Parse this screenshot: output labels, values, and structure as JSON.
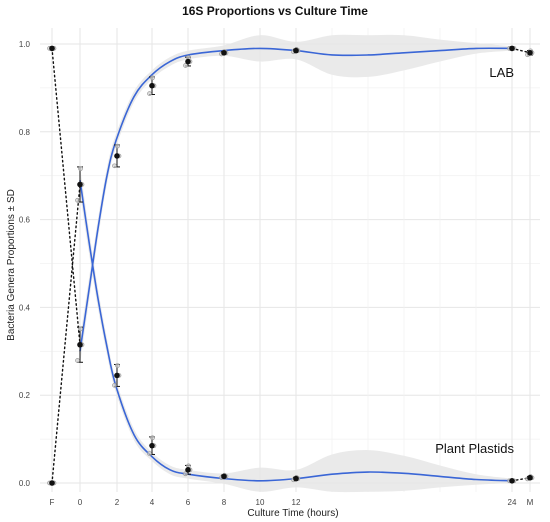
{
  "chart_data": {
    "type": "line",
    "title": "16S Proportions vs Culture Time",
    "xlabel": "Culture Time (hours)",
    "ylabel": "Bacteria Genera Proportions ± SD",
    "ylim": [
      0,
      1
    ],
    "y_ticks": [
      0.0,
      0.2,
      0.4,
      0.6,
      0.8,
      1.0
    ],
    "y_tick_labels": [
      "0.0",
      "0.2",
      "0.4",
      "0.6",
      "0.8",
      "1.0"
    ],
    "x_ticks": [
      "F",
      "0",
      "2",
      "4",
      "6",
      "8",
      "10",
      "12",
      "24",
      "M"
    ],
    "grid": true,
    "colors": {
      "fit_line": "#3a66d6",
      "band": "#e6e6e6",
      "mean_point": "#111111",
      "replicate": "#9a9a9a"
    },
    "series": [
      {
        "name": "LAB",
        "points": [
          {
            "x": "F",
            "mean": 0.99,
            "sd": 0.0
          },
          {
            "x": "0",
            "mean": 0.315,
            "sd": 0.04
          },
          {
            "x": "2",
            "mean": 0.245,
            "sd": 0.025
          },
          {
            "x": "4",
            "mean": 0.905,
            "sd": 0.02
          },
          {
            "x": "6",
            "mean": 0.96,
            "sd": 0.01
          },
          {
            "x": "8",
            "mean": 0.98,
            "sd": 0.003
          },
          {
            "x": "12",
            "mean": 0.985,
            "sd": 0.003
          },
          {
            "x": "24",
            "mean": 0.99,
            "sd": 0.0
          },
          {
            "x": "M",
            "mean": 0.98,
            "sd": 0.005
          }
        ]
      },
      {
        "name": "Plant Plastids",
        "points": [
          {
            "x": "F",
            "mean": 0.0,
            "sd": 0.0
          },
          {
            "x": "0",
            "mean": 0.68,
            "sd": 0.04
          },
          {
            "x": "2",
            "mean": 0.745,
            "sd": 0.025
          },
          {
            "x": "4",
            "mean": 0.085,
            "sd": 0.02
          },
          {
            "x": "6",
            "mean": 0.03,
            "sd": 0.01
          },
          {
            "x": "8",
            "mean": 0.015,
            "sd": 0.003
          },
          {
            "x": "12",
            "mean": 0.01,
            "sd": 0.003
          },
          {
            "x": "24",
            "mean": 0.005,
            "sd": 0.0
          },
          {
            "x": "M",
            "mean": 0.012,
            "sd": 0.003
          }
        ]
      }
    ],
    "fit": {
      "LAB": [
        [
          0,
          0.3
        ],
        [
          0.5,
          0.44
        ],
        [
          1,
          0.58
        ],
        [
          1.5,
          0.7
        ],
        [
          2,
          0.78
        ],
        [
          3,
          0.88
        ],
        [
          4,
          0.93
        ],
        [
          5,
          0.96
        ],
        [
          6,
          0.975
        ],
        [
          8,
          0.985
        ],
        [
          10,
          0.99
        ],
        [
          12,
          0.985
        ],
        [
          14,
          0.975
        ],
        [
          16,
          0.975
        ],
        [
          18,
          0.98
        ],
        [
          20,
          0.985
        ],
        [
          22,
          0.99
        ],
        [
          24,
          0.99
        ]
      ],
      "Plant Plastids": [
        [
          0,
          0.69
        ],
        [
          0.5,
          0.55
        ],
        [
          1,
          0.42
        ],
        [
          1.5,
          0.31
        ],
        [
          2,
          0.22
        ],
        [
          3,
          0.11
        ],
        [
          4,
          0.06
        ],
        [
          5,
          0.03
        ],
        [
          6,
          0.02
        ],
        [
          8,
          0.01
        ],
        [
          10,
          0.005
        ],
        [
          12,
          0.01
        ],
        [
          14,
          0.02
        ],
        [
          16,
          0.025
        ],
        [
          18,
          0.022
        ],
        [
          20,
          0.015
        ],
        [
          22,
          0.008
        ],
        [
          24,
          0.005
        ]
      ]
    },
    "band": {
      "LAB": [
        [
          0,
          0.03
        ],
        [
          2,
          0.015
        ],
        [
          4,
          0.01
        ],
        [
          6,
          0.01
        ],
        [
          8,
          0.012
        ],
        [
          10,
          0.03
        ],
        [
          12,
          0.02
        ],
        [
          14,
          0.045
        ],
        [
          16,
          0.05
        ],
        [
          18,
          0.04
        ],
        [
          20,
          0.025
        ],
        [
          22,
          0.012
        ],
        [
          24,
          0.005
        ]
      ],
      "Plant Plastids": [
        [
          0,
          0.03
        ],
        [
          2,
          0.015
        ],
        [
          4,
          0.01
        ],
        [
          6,
          0.01
        ],
        [
          8,
          0.012
        ],
        [
          10,
          0.03
        ],
        [
          12,
          0.02
        ],
        [
          14,
          0.045
        ],
        [
          16,
          0.05
        ],
        [
          18,
          0.04
        ],
        [
          20,
          0.025
        ],
        [
          22,
          0.012
        ],
        [
          24,
          0.005
        ]
      ]
    },
    "dotted_links": [
      {
        "series": "LAB",
        "from": "F",
        "to": "0"
      },
      {
        "series": "Plant Plastids",
        "from": "F",
        "to": "0"
      },
      {
        "series": "LAB",
        "from": "24",
        "to": "M"
      },
      {
        "series": "Plant Plastids",
        "from": "24",
        "to": "M"
      }
    ]
  }
}
